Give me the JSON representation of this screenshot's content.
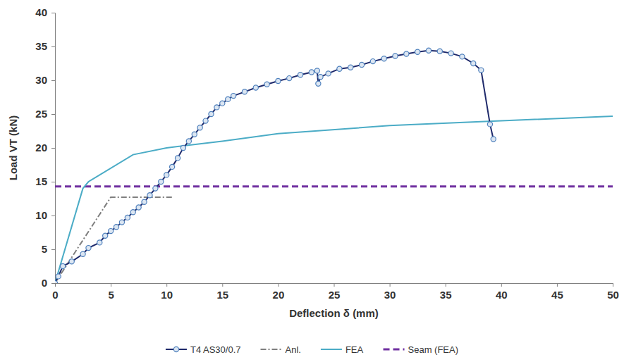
{
  "chart_data": {
    "type": "line",
    "x_label": "Deflection δ (mm)",
    "y_label": "Load VT (kN)",
    "xlim": [
      0,
      50
    ],
    "ylim": [
      0,
      40
    ],
    "xticks": [
      0,
      5,
      10,
      15,
      20,
      25,
      30,
      35,
      40,
      45,
      50
    ],
    "yticks": [
      0,
      5,
      10,
      15,
      20,
      25,
      30,
      35,
      40
    ],
    "grid": false,
    "legend": "bottom",
    "series": [
      {
        "name": "T4 AS30/0.7",
        "color": "#1f2a6b",
        "marker": "circle",
        "line_style": "solid",
        "x": [
          0,
          0.3,
          0.7,
          1.5,
          2.5,
          3,
          4,
          4.5,
          5,
          5.5,
          6,
          6.5,
          7,
          7.5,
          8,
          8.5,
          9,
          9.5,
          10,
          10.5,
          11,
          11.5,
          12,
          12.5,
          13,
          13.5,
          14,
          14.5,
          15,
          15.5,
          16,
          17,
          18,
          19,
          20,
          21,
          22,
          23,
          23.5,
          23.6,
          23.8,
          24.5,
          25.5,
          26.5,
          27.5,
          28.5,
          29.5,
          30.5,
          31.5,
          32.5,
          33.5,
          34.5,
          35.5,
          36.5,
          37.5,
          38.2,
          39,
          39.3
        ],
        "values": [
          0,
          1,
          2.5,
          3.2,
          4.3,
          5.2,
          6,
          7,
          7.7,
          8.3,
          9,
          9.7,
          10.5,
          11.2,
          12,
          13,
          14,
          15,
          16,
          17.2,
          18.5,
          20,
          21,
          22,
          23,
          24,
          25,
          26,
          26.6,
          27.2,
          27.7,
          28.3,
          28.9,
          29.4,
          29.9,
          30.3,
          30.8,
          31.2,
          31.4,
          29.5,
          30.5,
          31,
          31.7,
          31.9,
          32.3,
          32.8,
          33.2,
          33.6,
          33.9,
          34.2,
          34.4,
          34.3,
          34,
          33.5,
          32.5,
          31.5,
          23.5,
          21.3
        ]
      },
      {
        "name": "Anl.",
        "color": "#7f7f7f",
        "marker": "none",
        "line_style": "dashdot",
        "x": [
          0,
          5,
          10.5
        ],
        "values": [
          0,
          12.7,
          12.7
        ]
      },
      {
        "name": "FEA",
        "color": "#4bacc6",
        "marker": "none",
        "line_style": "solid",
        "x": [
          0,
          2.5,
          3,
          7,
          10,
          15,
          20,
          30,
          40,
          50
        ],
        "values": [
          0,
          14,
          15,
          19,
          20,
          21,
          22.1,
          23.3,
          24,
          24.7
        ]
      },
      {
        "name": "Seam (FEA)",
        "color": "#7030a0",
        "marker": "none",
        "line_style": "dashed",
        "x": [
          0,
          50
        ],
        "values": [
          14.3,
          14.3
        ]
      }
    ]
  }
}
